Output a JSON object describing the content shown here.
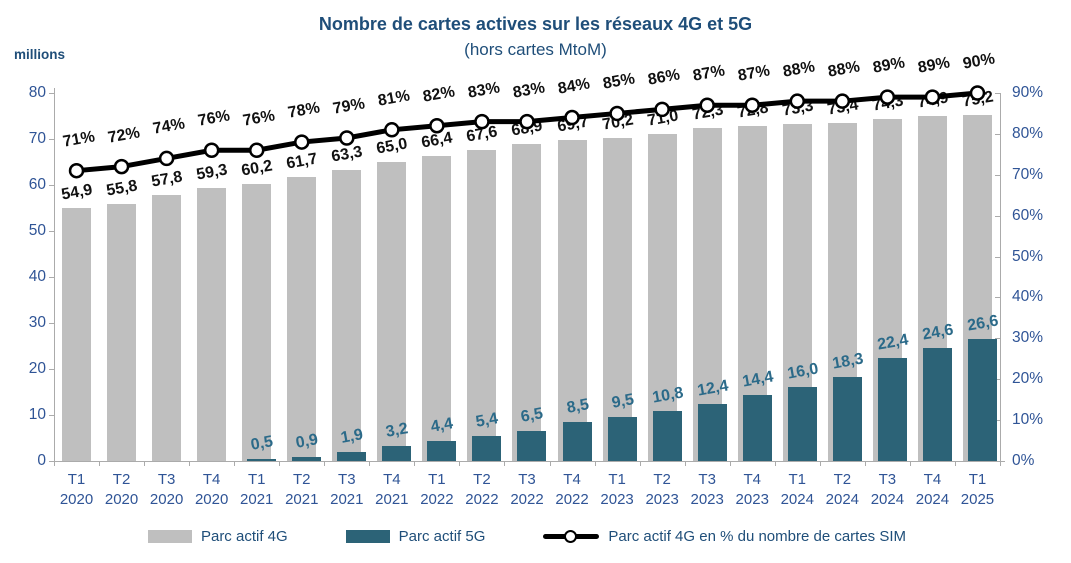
{
  "title": "Nombre de cartes actives sur les réseaux 4G et 5G",
  "subtitle": "(hors cartes MtoM)",
  "unit_label": "millions",
  "colors": {
    "title_blue": "#1F4E79",
    "axis_text_blue": "#2F5496",
    "bar_4g_gray": "#BFBFBF",
    "bar_5g_teal": "#2C6377",
    "label_5g": "#2B6A89",
    "line_black": "#000000",
    "axis_gray": "#ABABAB"
  },
  "legend": [
    {
      "label": "Parc actif 4G",
      "icon": "swatch-4g",
      "color": "#BFBFBF"
    },
    {
      "label": "Parc actif 5G",
      "icon": "swatch-5g",
      "color": "#2C6377"
    },
    {
      "label": "Parc actif 4G en % du nombre de cartes SIM",
      "icon": "line-marker"
    }
  ],
  "chart_data": {
    "type": "bar",
    "combo": "bars + percentage line",
    "title": "Nombre de cartes actives sur les réseaux 4G et 5G (hors cartes MtoM)",
    "categories": [
      "T1 2020",
      "T2 2020",
      "T3 2020",
      "T4 2020",
      "T1 2021",
      "T2 2021",
      "T3 2021",
      "T4 2021",
      "T1 2022",
      "T2 2022",
      "T3 2022",
      "T4 2022",
      "T1 2023",
      "T2 2023",
      "T3 2023",
      "T4 2023",
      "T1 2024",
      "T2 2024",
      "T3 2024",
      "T4 2024",
      "T1 2025"
    ],
    "series": [
      {
        "name": "Parc actif 4G",
        "type": "bar",
        "axis": "left",
        "values": [
          54.9,
          55.8,
          57.8,
          59.3,
          60.2,
          61.7,
          63.3,
          65.0,
          66.4,
          67.6,
          68.9,
          69.7,
          70.2,
          71.0,
          72.3,
          72.8,
          73.3,
          73.4,
          74.3,
          74.9,
          75.2
        ],
        "labels": [
          "54,9",
          "55,8",
          "57,8",
          "59,3",
          "60,2",
          "61,7",
          "63,3",
          "65,0",
          "66,4",
          "67,6",
          "68,9",
          "69,7",
          "70,2",
          "71,0",
          "72,3",
          "72,8",
          "73,3",
          "73,4",
          "74,3",
          "74,9",
          "75,2"
        ]
      },
      {
        "name": "Parc actif 5G",
        "type": "bar",
        "axis": "left",
        "values": [
          null,
          null,
          null,
          null,
          0.5,
          0.9,
          1.9,
          3.2,
          4.4,
          5.4,
          6.5,
          8.5,
          9.5,
          10.8,
          12.4,
          14.4,
          16.0,
          18.3,
          22.4,
          24.6,
          26.6
        ],
        "labels": [
          null,
          null,
          null,
          null,
          "0,5",
          "0,9",
          "1,9",
          "3,2",
          "4,4",
          "5,4",
          "6,5",
          "8,5",
          "9,5",
          "10,8",
          "12,4",
          "14,4",
          "16,0",
          "18,3",
          "22,4",
          "24,6",
          "26,6"
        ]
      },
      {
        "name": "Parc actif 4G en % du nombre de cartes SIM",
        "type": "line",
        "axis": "right",
        "values": [
          71,
          72,
          74,
          76,
          76,
          78,
          79,
          81,
          82,
          83,
          83,
          84,
          85,
          86,
          87,
          87,
          88,
          88,
          89,
          89,
          90
        ],
        "labels": [
          "71%",
          "72%",
          "74%",
          "76%",
          "76%",
          "78%",
          "79%",
          "81%",
          "82%",
          "83%",
          "83%",
          "84%",
          "85%",
          "86%",
          "87%",
          "87%",
          "88%",
          "88%",
          "89%",
          "89%",
          "90%"
        ]
      }
    ],
    "left_axis": {
      "label": "millions",
      "range": [
        0,
        80
      ],
      "ticks": [
        0,
        10,
        20,
        30,
        40,
        50,
        60,
        70,
        80
      ]
    },
    "right_axis": {
      "range": [
        0,
        90
      ],
      "ticks": [
        "0%",
        "10%",
        "20%",
        "30%",
        "40%",
        "50%",
        "60%",
        "70%",
        "80%",
        "90%"
      ]
    },
    "grid": false,
    "legend_position": "bottom"
  }
}
